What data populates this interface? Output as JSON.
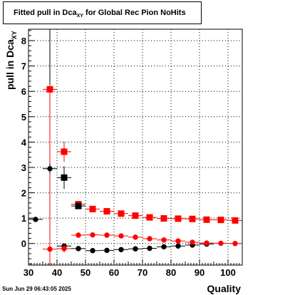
{
  "title": {
    "main": "Fitted pull in Dca",
    "sub": "XY",
    "suffix": " for Global Rec Pion NoHits"
  },
  "ylabel": {
    "main": "pull in Dca",
    "sub": "XY"
  },
  "xlabel": "Quality",
  "footer": "Sun Jun 29 06:43:05 2025",
  "chart_data": {
    "type": "scatter",
    "xlim": [
      30,
      105
    ],
    "ylim": [
      -0.85,
      8.45
    ],
    "xticks": [
      30,
      40,
      50,
      60,
      70,
      80,
      90,
      100
    ],
    "yticks": [
      0,
      1,
      2,
      3,
      4,
      5,
      6,
      7,
      8
    ],
    "grid": true,
    "legend": "none",
    "colors": {
      "red": "#ff0000",
      "black": "#000000"
    },
    "series": [
      {
        "marker": "square",
        "color": "#ff0000",
        "points": [
          {
            "x": 37.5,
            "y": 6.08,
            "yerr": 0.2
          },
          {
            "x": 42.5,
            "y": 3.62,
            "yerr": 0.4
          },
          {
            "x": 47.5,
            "y": 1.55,
            "yerr": 0.05
          },
          {
            "x": 52.5,
            "y": 1.36,
            "yerr": 0.04
          },
          {
            "x": 57.5,
            "y": 1.27,
            "yerr": 0.03
          },
          {
            "x": 62.5,
            "y": 1.18,
            "yerr": 0.03
          },
          {
            "x": 67.5,
            "y": 1.1,
            "yerr": 0.02
          },
          {
            "x": 72.5,
            "y": 1.03,
            "yerr": 0.02
          },
          {
            "x": 77.5,
            "y": 0.99,
            "yerr": 0.02
          },
          {
            "x": 82.5,
            "y": 0.98,
            "yerr": 0.02
          },
          {
            "x": 87.5,
            "y": 0.97,
            "yerr": 0.02
          },
          {
            "x": 92.5,
            "y": 0.94,
            "yerr": 0.02
          },
          {
            "x": 97.5,
            "y": 0.93,
            "yerr": 0.02
          },
          {
            "x": 102.5,
            "y": 0.91,
            "yerr": 0.02
          }
        ]
      },
      {
        "marker": "square",
        "color": "#000000",
        "points": [
          {
            "x": 42.5,
            "y": 2.6,
            "yerr": 0.45
          },
          {
            "x": 47.5,
            "y": 1.48,
            "yerr": 0.08
          }
        ]
      },
      {
        "marker": "circle",
        "color": "#000000",
        "points": [
          {
            "x": 32.5,
            "y": 0.95,
            "yerr": 0.1
          },
          {
            "x": 37.5,
            "y": 2.95,
            "yerr": 0.2
          },
          {
            "x": 42.5,
            "y": -0.1,
            "yerr": 0.06
          },
          {
            "x": 47.5,
            "y": -0.2,
            "yerr": 0.04
          },
          {
            "x": 52.5,
            "y": -0.28,
            "yerr": 0.03
          },
          {
            "x": 57.5,
            "y": -0.27,
            "yerr": 0.03
          },
          {
            "x": 62.5,
            "y": -0.24,
            "yerr": 0.02
          },
          {
            "x": 67.5,
            "y": -0.21,
            "yerr": 0.02
          },
          {
            "x": 72.5,
            "y": -0.19,
            "yerr": 0.02
          },
          {
            "x": 77.5,
            "y": -0.13,
            "yerr": 0.02
          },
          {
            "x": 82.5,
            "y": -0.1,
            "yerr": 0.02
          },
          {
            "x": 87.5,
            "y": -0.06,
            "yerr": 0.02
          },
          {
            "x": 92.5,
            "y": -0.02,
            "yerr": 0.02
          }
        ]
      },
      {
        "marker": "circle",
        "color": "#ff0000",
        "points": [
          {
            "x": 37.5,
            "y": -0.22,
            "yerr": 0.15
          },
          {
            "x": 42.5,
            "y": -0.2,
            "yerr": 0.15
          },
          {
            "x": 47.5,
            "y": 0.33,
            "yerr": 0.03
          },
          {
            "x": 52.5,
            "y": 0.34,
            "yerr": 0.03
          },
          {
            "x": 57.5,
            "y": 0.33,
            "yerr": 0.03
          },
          {
            "x": 62.5,
            "y": 0.3,
            "yerr": 0.02
          },
          {
            "x": 67.5,
            "y": 0.25,
            "yerr": 0.02
          },
          {
            "x": 72.5,
            "y": 0.19,
            "yerr": 0.02
          },
          {
            "x": 77.5,
            "y": 0.14,
            "yerr": 0.02
          },
          {
            "x": 82.5,
            "y": 0.1,
            "yerr": 0.02
          },
          {
            "x": 87.5,
            "y": 0.05,
            "yerr": 0.02
          },
          {
            "x": 92.5,
            "y": 0.02,
            "yerr": 0.02
          },
          {
            "x": 97.5,
            "y": 0.01,
            "yerr": 0.02
          },
          {
            "x": 102.5,
            "y": 0.0,
            "yerr": 0.02
          }
        ]
      }
    ],
    "vlines": [
      {
        "x": 37.5,
        "y0": -0.85,
        "y1": 8.45,
        "color": "#000000"
      },
      {
        "x": 37.5,
        "y0": -0.85,
        "y1": 6.2,
        "color": "#ff0000"
      }
    ]
  }
}
